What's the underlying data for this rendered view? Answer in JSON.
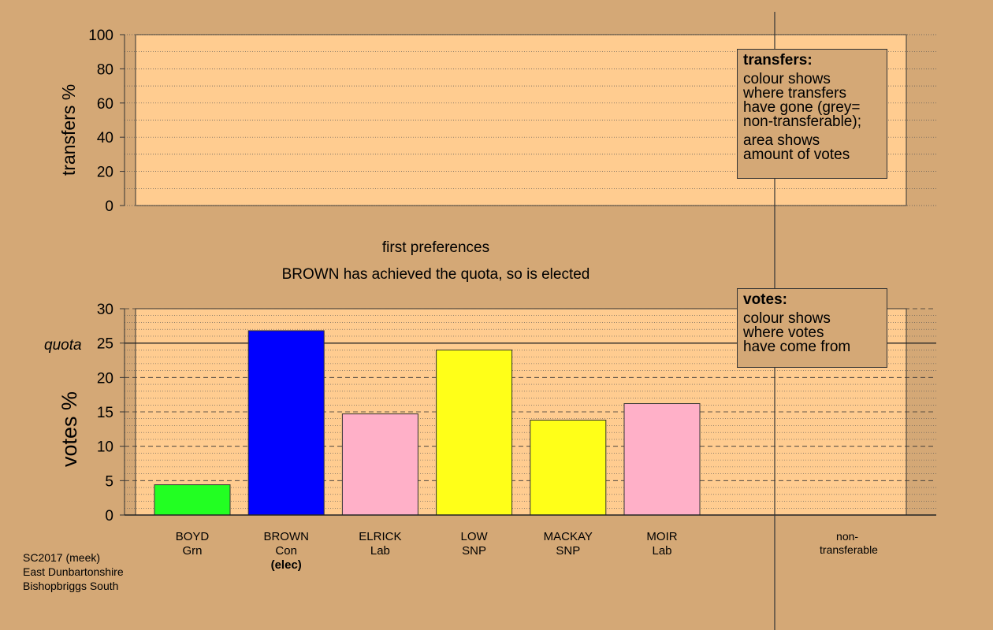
{
  "chart_data": [
    {
      "type": "bar",
      "panel": "transfers",
      "ylabel": "transfers %",
      "ylim": [
        0,
        100
      ],
      "yticks": [
        0,
        20,
        40,
        60,
        80,
        100
      ],
      "grid": "dotted",
      "categories": [],
      "values": [],
      "legend": {
        "placement": "top-right",
        "title": "transfers:",
        "lines": [
          "colour shows",
          "where transfers",
          "have gone (grey=",
          "non-transferable);"
        ],
        "lines2": [
          "area shows",
          "amount of votes"
        ]
      }
    },
    {
      "type": "bar",
      "panel": "votes",
      "title": "first preferences",
      "subtitle": "BROWN has achieved the quota, so is elected",
      "ylabel": "votes %",
      "ylim": [
        0,
        30
      ],
      "yticks": [
        0,
        5,
        10,
        15,
        20,
        25,
        30
      ],
      "quota": 25,
      "quota_label": "quota",
      "grid": "dotted",
      "categories": [
        "BOYD",
        "BROWN",
        "ELRICK",
        "LOW",
        "MACKAY",
        "MOIR"
      ],
      "parties": [
        "Grn",
        "Con",
        "Lab",
        "SNP",
        "SNP",
        "Lab"
      ],
      "notes": [
        "",
        "(elec)",
        "",
        "",
        "",
        ""
      ],
      "values": [
        4.4,
        26.8,
        14.7,
        24.0,
        13.8,
        16.2
      ],
      "colors": [
        "#22ff22",
        "#0000ff",
        "#ffb0c8",
        "#ffff18",
        "#ffff18",
        "#ffb0c8"
      ],
      "nontransferable_label": "non-\ntransferable",
      "legend": {
        "placement": "top-right",
        "title": "votes:",
        "lines": [
          "colour shows",
          "where votes",
          "have come from"
        ]
      }
    }
  ],
  "footer": {
    "line1": "SC2017 (meek)",
    "line2": "East Dunbartonshire",
    "line3": "Bishopbriggs South"
  },
  "colors": {
    "background": "#d4a876",
    "plot_fill": "#ffcc90"
  }
}
